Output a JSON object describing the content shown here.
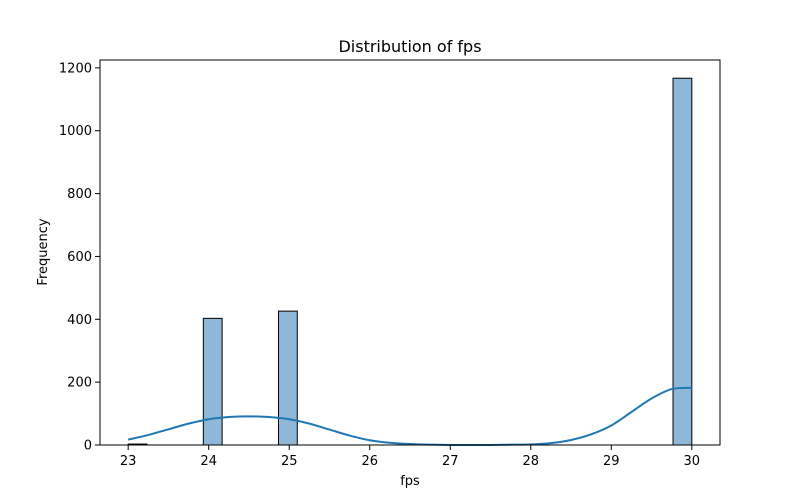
{
  "chart_data": {
    "type": "bar",
    "title": "Distribution of fps",
    "xlabel": "fps",
    "ylabel": "Frequency",
    "xlim": [
      22.65,
      30.35
    ],
    "ylim": [
      0,
      1225
    ],
    "x_ticks": [
      23,
      24,
      25,
      26,
      27,
      28,
      29,
      30
    ],
    "y_ticks": [
      0,
      200,
      400,
      600,
      800,
      1000,
      1200
    ],
    "bin_width": 0.2333,
    "bins": [
      {
        "x0": 23.0,
        "x1": 23.2333,
        "count": 3
      },
      {
        "x0": 23.9333,
        "x1": 24.1667,
        "count": 403
      },
      {
        "x0": 24.8667,
        "x1": 25.1,
        "count": 426
      },
      {
        "x0": 29.7667,
        "x1": 30.0,
        "count": 1167
      }
    ],
    "kde": {
      "x": [
        23.0,
        23.25,
        23.5,
        23.75,
        24.0,
        24.25,
        24.5,
        24.75,
        25.0,
        25.25,
        25.5,
        25.75,
        26.0,
        26.25,
        26.5,
        26.75,
        27.0,
        27.25,
        27.5,
        27.75,
        28.0,
        28.25,
        28.5,
        28.75,
        29.0,
        29.25,
        29.5,
        29.75,
        30.0
      ],
      "y": [
        17,
        32,
        50,
        68,
        82,
        89,
        91,
        89,
        82,
        68,
        49,
        30,
        15,
        7,
        3,
        1,
        0,
        0,
        0,
        1,
        2,
        6,
        16,
        34,
        62,
        105,
        148,
        178,
        182
      ]
    },
    "colors": {
      "bar_fill": "#8fb8d8",
      "bar_edge": "#000000",
      "kde_line": "#1f77b4"
    }
  }
}
